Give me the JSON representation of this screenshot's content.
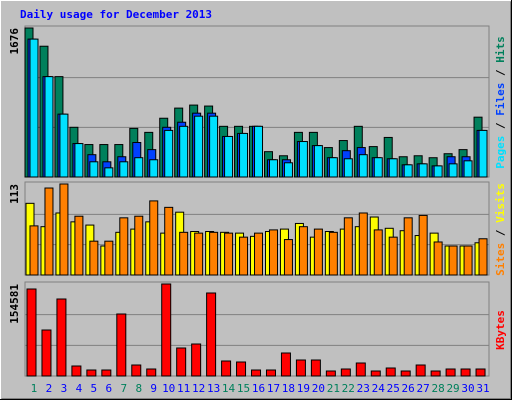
{
  "title": "Daily usage for December 2013",
  "title_color": "#0000ff",
  "legend_separator": " / ",
  "chart_data": [
    {
      "type": "bar",
      "ylim": [
        0,
        1676
      ],
      "yticks": [
        1676
      ],
      "series": [
        {
          "name": "Hits",
          "color": "#00805c",
          "values": [
            1676,
            1471,
            1129,
            559,
            365,
            365,
            365,
            547,
            502,
            661,
            775,
            809,
            798,
            570,
            570,
            570,
            285,
            239,
            502,
            502,
            331,
            410,
            570,
            342,
            445,
            228,
            239,
            217,
            262,
            308,
            673
          ]
        },
        {
          "name": "Files",
          "color": "#0040ff",
          "values": [
            1551,
            1129,
            707,
            376,
            251,
            171,
            228,
            388,
            308,
            559,
            616,
            718,
            718,
            456,
            490,
            570,
            194,
            194,
            399,
            353,
            217,
            296,
            331,
            217,
            205,
            137,
            148,
            125,
            228,
            228,
            524
          ]
        },
        {
          "name": "Pages",
          "color": "#00e0ff",
          "values": [
            1551,
            1129,
            707,
            376,
            171,
            103,
            171,
            217,
            194,
            524,
            570,
            684,
            684,
            456,
            490,
            570,
            194,
            160,
            399,
            353,
            217,
            205,
            251,
            217,
            205,
            137,
            148,
            125,
            148,
            182,
            524
          ]
        }
      ]
    },
    {
      "type": "bar",
      "ylim": [
        0,
        113
      ],
      "yticks": [
        113
      ],
      "series": [
        {
          "name": "Visits",
          "color": "#ffff00",
          "values": [
            89,
            60,
            77,
            66,
            62,
            36,
            53,
            57,
            66,
            52,
            78,
            54,
            54,
            53,
            52,
            48,
            54,
            57,
            64,
            47,
            54,
            57,
            60,
            72,
            58,
            55,
            49,
            52,
            36,
            36,
            40
          ]
        },
        {
          "name": "Sites",
          "color": "#ff8000",
          "values": [
            61,
            108,
            113,
            73,
            42,
            42,
            71,
            73,
            92,
            84,
            53,
            52,
            53,
            52,
            47,
            52,
            56,
            44,
            60,
            57,
            53,
            71,
            77,
            56,
            47,
            71,
            74,
            41,
            36,
            36,
            45
          ]
        }
      ]
    },
    {
      "type": "bar",
      "ylim": [
        0,
        154581
      ],
      "yticks": [
        154581
      ],
      "categories": [
        "1",
        "2",
        "3",
        "4",
        "5",
        "6",
        "7",
        "8",
        "9",
        "10",
        "11",
        "12",
        "13",
        "14",
        "15",
        "16",
        "17",
        "18",
        "19",
        "20",
        "21",
        "22",
        "23",
        "24",
        "25",
        "26",
        "27",
        "28",
        "29",
        "30",
        "31"
      ],
      "category_colors": [
        "#00805c",
        "#0000ff",
        "#0000ff",
        "#0000ff",
        "#0000ff",
        "#0000ff",
        "#00805c",
        "#00805c",
        "#0000ff",
        "#0000ff",
        "#0000ff",
        "#0000ff",
        "#0000ff",
        "#00805c",
        "#00805c",
        "#0000ff",
        "#0000ff",
        "#0000ff",
        "#0000ff",
        "#0000ff",
        "#00805c",
        "#00805c",
        "#0000ff",
        "#0000ff",
        "#0000ff",
        "#0000ff",
        "#0000ff",
        "#00805c",
        "#00805c",
        "#0000ff",
        "#0000ff"
      ],
      "series": [
        {
          "name": "KBytes",
          "color": "#ff0000",
          "values": [
            146180,
            77290,
            129380,
            16800,
            10080,
            10080,
            104170,
            18480,
            11760,
            154581,
            47050,
            53770,
            139460,
            25200,
            23520,
            10080,
            10080,
            38650,
            26880,
            26880,
            8400,
            11760,
            21840,
            8400,
            13440,
            8400,
            18480,
            8400,
            11760,
            11760,
            11760
          ]
        }
      ]
    }
  ]
}
